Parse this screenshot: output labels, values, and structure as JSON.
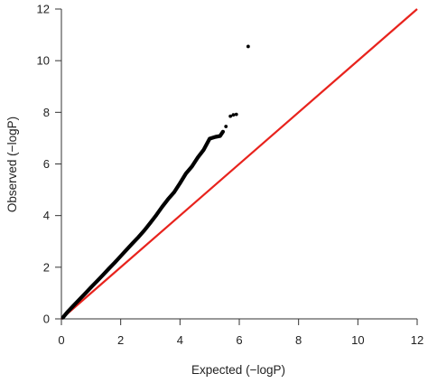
{
  "chart_data": {
    "type": "scatter",
    "title": "",
    "xlabel": "Expected (−logP)",
    "ylabel": "Observed (−logP)",
    "xlim": [
      0,
      12
    ],
    "ylim": [
      0,
      12
    ],
    "xticks": [
      "0",
      "2",
      "4",
      "6",
      "8",
      "10",
      "12"
    ],
    "yticks": [
      "0",
      "2",
      "4",
      "6",
      "8",
      "10",
      "12"
    ],
    "grid": false,
    "reference_line": {
      "from": [
        0,
        0
      ],
      "to": [
        12,
        12
      ],
      "color": "#e8231d"
    },
    "point_color": "#000000",
    "series": [
      {
        "values": [
          [
            0.05,
            0.05
          ],
          [
            0.2,
            0.26
          ],
          [
            0.4,
            0.5
          ],
          [
            0.6,
            0.74
          ],
          [
            0.8,
            0.98
          ],
          [
            1.0,
            1.22
          ],
          [
            1.2,
            1.46
          ],
          [
            1.4,
            1.7
          ],
          [
            1.6,
            1.94
          ],
          [
            1.8,
            2.18
          ],
          [
            2.0,
            2.43
          ],
          [
            2.2,
            2.68
          ],
          [
            2.4,
            2.93
          ],
          [
            2.6,
            3.17
          ],
          [
            2.8,
            3.43
          ],
          [
            3.0,
            3.72
          ],
          [
            3.2,
            4.02
          ],
          [
            3.4,
            4.34
          ],
          [
            3.6,
            4.64
          ],
          [
            3.8,
            4.9
          ],
          [
            4.0,
            5.25
          ],
          [
            4.2,
            5.63
          ],
          [
            4.4,
            5.9
          ],
          [
            4.6,
            6.25
          ],
          [
            4.8,
            6.55
          ],
          [
            5.0,
            6.98
          ],
          [
            5.2,
            7.05
          ],
          [
            5.35,
            7.08
          ],
          [
            5.45,
            7.25
          ],
          [
            5.55,
            7.45
          ],
          [
            5.7,
            7.85
          ],
          [
            5.8,
            7.9
          ],
          [
            5.9,
            7.92
          ],
          [
            6.3,
            10.55
          ]
        ]
      }
    ]
  }
}
